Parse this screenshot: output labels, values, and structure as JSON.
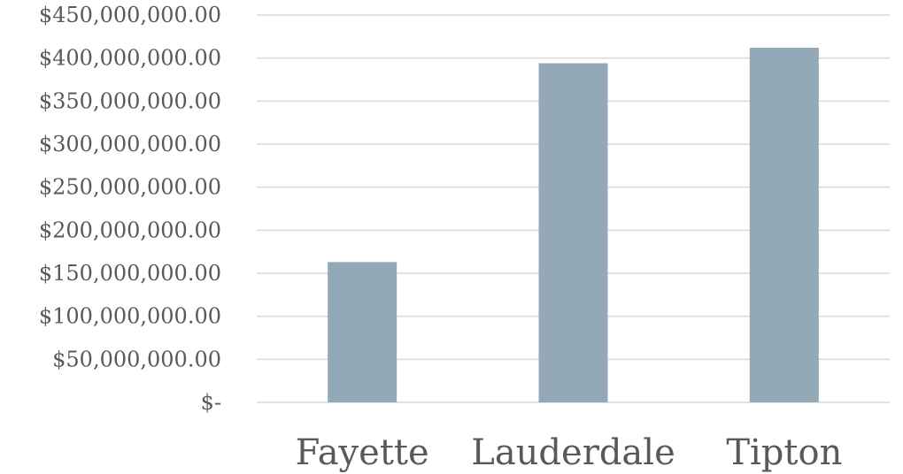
{
  "chart_data": {
    "type": "bar",
    "categories": [
      "Fayette",
      "Lauderdale",
      "Tipton"
    ],
    "values": [
      163000000,
      394000000,
      412000000
    ],
    "ylim": [
      0,
      450000000
    ],
    "yticks": [
      0,
      50000000,
      100000000,
      150000000,
      200000000,
      250000000,
      300000000,
      350000000,
      400000000,
      450000000
    ],
    "ytick_labels": [
      "$-",
      "$50,000,000.00",
      "$100,000,000.00",
      "$150,000,000.00",
      "$200,000,000.00",
      "$250,000,000.00",
      "$300,000,000.00",
      "$350,000,000.00",
      "$400,000,000.00",
      "$450,000,000.00"
    ],
    "title": "",
    "xlabel": "",
    "ylabel": "",
    "grid": true,
    "legend": "none",
    "bar_color": "#93a9b8"
  }
}
